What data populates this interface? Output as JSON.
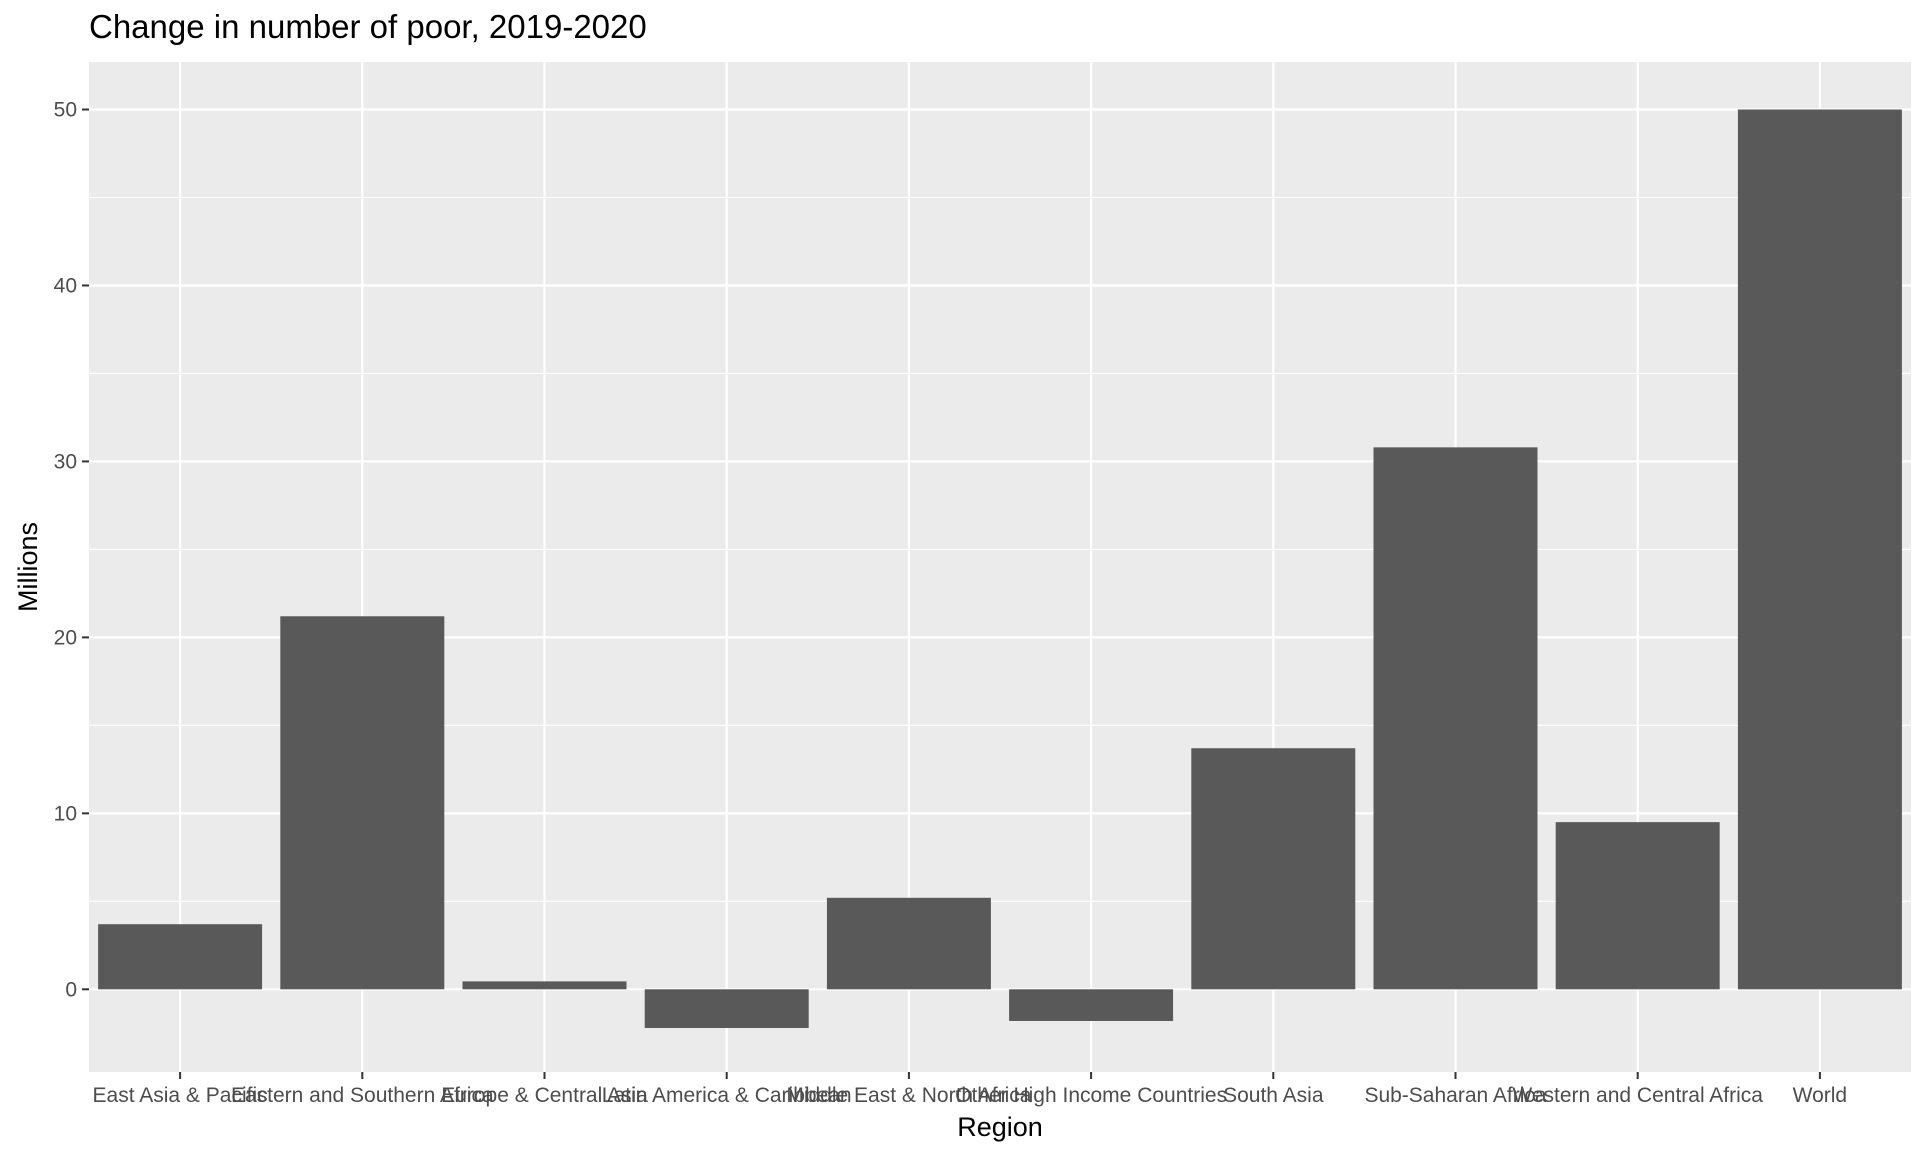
{
  "chart_data": {
    "type": "bar",
    "title": "Change in number of poor, 2019-2020",
    "xlabel": "Region",
    "ylabel": "Millions",
    "categories": [
      "East Asia & Pacific",
      "Eastern and Southern Africa",
      "Europe & Central Asia",
      "Latin America & Caribbean",
      "Middle East & North Africa",
      "Other High Income Countries",
      "South Asia",
      "Sub-Saharan Africa",
      "Western and Central Africa",
      "World"
    ],
    "values": [
      3.7,
      21.2,
      0.45,
      -2.2,
      5.2,
      -1.8,
      13.7,
      30.8,
      9.5,
      50.0
    ],
    "ylim": [
      -4.7,
      52.7
    ],
    "yticks": [
      0,
      10,
      20,
      30,
      40,
      50
    ],
    "grid": true,
    "colors": {
      "bar": "#595959",
      "panel": "#ebebeb",
      "grid": "#ffffff"
    }
  }
}
